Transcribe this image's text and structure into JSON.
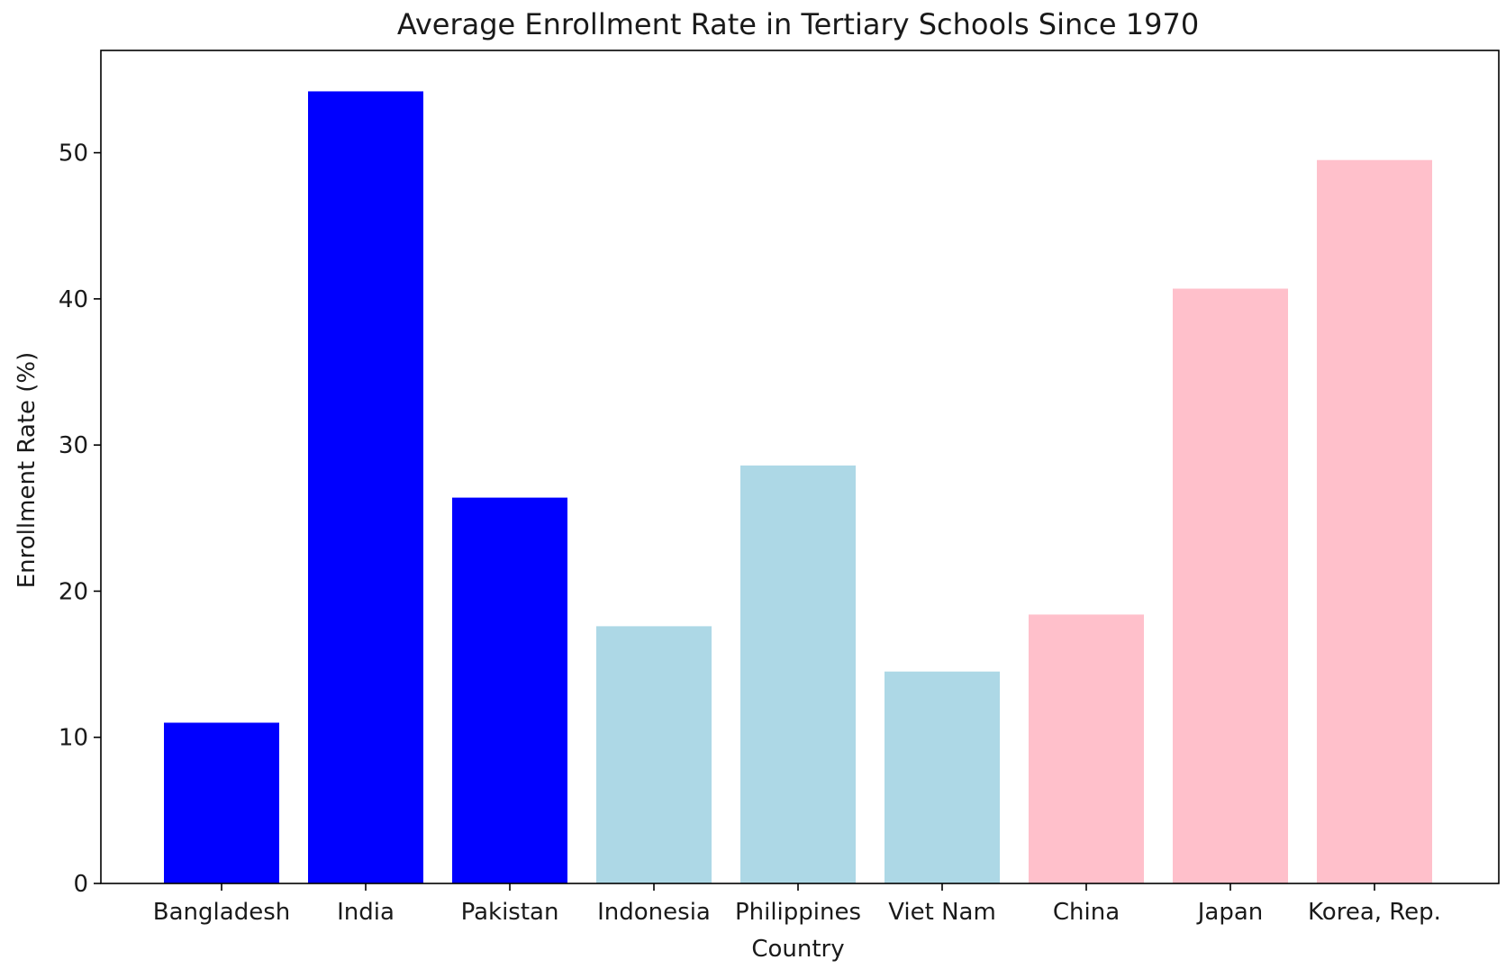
{
  "chart_data": {
    "type": "bar",
    "title": "Average Enrollment Rate in Tertiary Schools Since 1970",
    "xlabel": "Country",
    "ylabel": "Enrollment Rate (%)",
    "categories": [
      "Bangladesh",
      "India",
      "Pakistan",
      "Indonesia",
      "Philippines",
      "Viet Nam",
      "China",
      "Japan",
      "Korea, Rep."
    ],
    "values": [
      11.0,
      54.2,
      26.4,
      17.6,
      28.6,
      14.5,
      18.4,
      40.7,
      49.5
    ],
    "colors": [
      "#0000ff",
      "#0000ff",
      "#0000ff",
      "#add8e6",
      "#add8e6",
      "#add8e6",
      "#ffc0cb",
      "#ffc0cb",
      "#ffc0cb"
    ],
    "ylim": [
      0,
      57
    ],
    "yticks": [
      0,
      10,
      20,
      30,
      40,
      50
    ],
    "grid": false,
    "legend": false
  }
}
